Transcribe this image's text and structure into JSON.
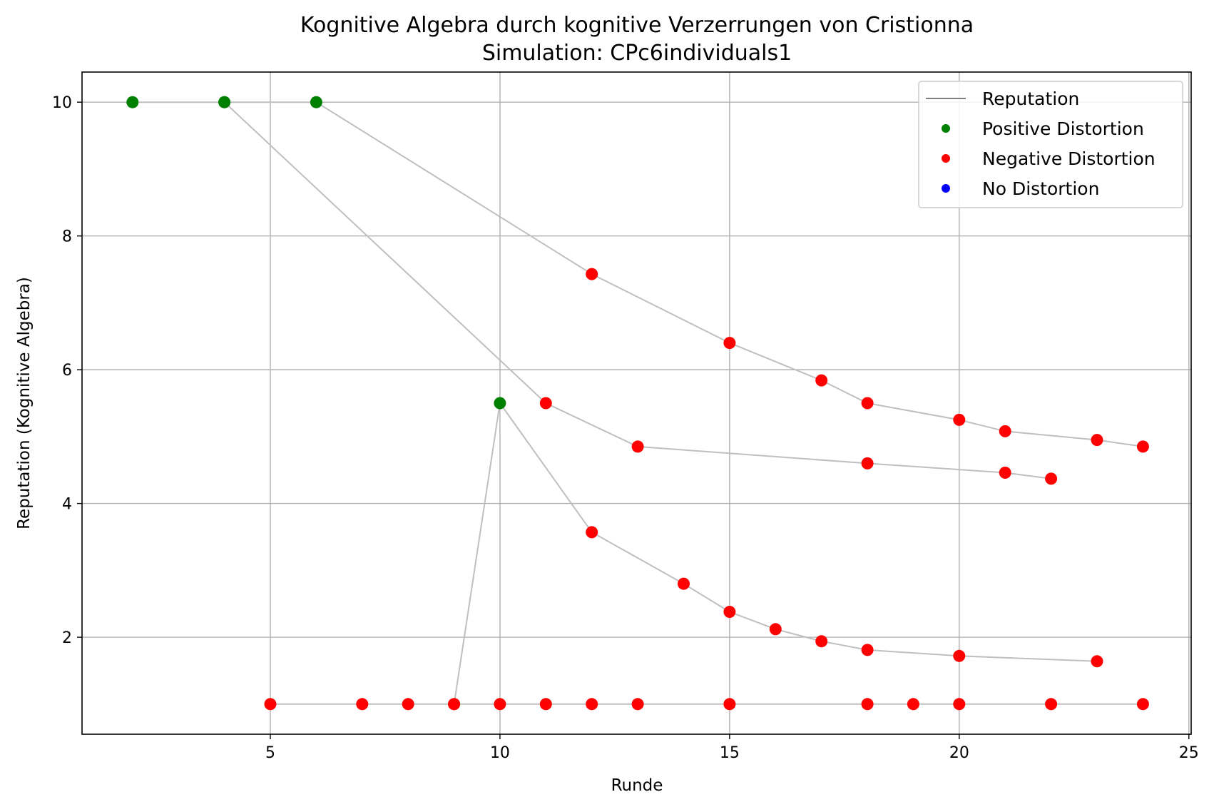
{
  "chart_data": {
    "type": "scatter",
    "title": "Kognitive Algebra durch kognitive Verzerrungen von Cristionna",
    "subtitle": "Simulation: CPc6individuals1",
    "xlabel": "Runde",
    "ylabel": "Reputation (Kognitive Algebra)",
    "xlim": [
      0.9,
      25.05
    ],
    "ylim": [
      0.55,
      10.45
    ],
    "xticks": [
      5,
      10,
      15,
      20,
      25
    ],
    "yticks": [
      2,
      4,
      6,
      8,
      10
    ],
    "grid": true,
    "legend_position": "top-right",
    "legend": [
      {
        "label": "Reputation",
        "kind": "line",
        "color": "#808080"
      },
      {
        "label": "Positive Distortion",
        "kind": "marker",
        "color": "#008000"
      },
      {
        "label": "Negative Distortion",
        "kind": "marker",
        "color": "#ff0000"
      },
      {
        "label": "No Distortion",
        "kind": "marker",
        "color": "#0000ff"
      }
    ],
    "line_color": "#bfbfbf",
    "series": [
      {
        "points": [
          {
            "x": 2,
            "y": 10,
            "d": "positive"
          },
          {
            "x": 4,
            "y": 10,
            "d": "positive"
          },
          {
            "x": 6,
            "y": 10,
            "d": "positive"
          },
          {
            "x": 12,
            "y": 7.43,
            "d": "negative"
          },
          {
            "x": 15,
            "y": 6.4,
            "d": "negative"
          },
          {
            "x": 17,
            "y": 5.84,
            "d": "negative"
          },
          {
            "x": 18,
            "y": 5.5,
            "d": "negative"
          },
          {
            "x": 20,
            "y": 5.25,
            "d": "negative"
          },
          {
            "x": 21,
            "y": 5.08,
            "d": "negative"
          },
          {
            "x": 23,
            "y": 4.95,
            "d": "negative"
          },
          {
            "x": 24,
            "y": 4.85,
            "d": "negative"
          }
        ]
      },
      {
        "points": [
          {
            "x": 4,
            "y": 10,
            "d": "positive"
          },
          {
            "x": 11,
            "y": 5.5,
            "d": "negative"
          },
          {
            "x": 13,
            "y": 4.85,
            "d": "negative"
          },
          {
            "x": 18,
            "y": 4.6,
            "d": "negative"
          },
          {
            "x": 21,
            "y": 4.46,
            "d": "negative"
          },
          {
            "x": 22,
            "y": 4.37,
            "d": "negative"
          }
        ]
      },
      {
        "points": [
          {
            "x": 9,
            "y": 1,
            "d": "negative"
          },
          {
            "x": 10,
            "y": 5.5,
            "d": "positive"
          },
          {
            "x": 12,
            "y": 3.57,
            "d": "negative"
          },
          {
            "x": 14,
            "y": 2.8,
            "d": "negative"
          },
          {
            "x": 15,
            "y": 2.38,
            "d": "negative"
          },
          {
            "x": 16,
            "y": 2.12,
            "d": "negative"
          },
          {
            "x": 17,
            "y": 1.94,
            "d": "negative"
          },
          {
            "x": 18,
            "y": 1.81,
            "d": "negative"
          },
          {
            "x": 20,
            "y": 1.72,
            "d": "negative"
          },
          {
            "x": 23,
            "y": 1.64,
            "d": "negative"
          }
        ]
      },
      {
        "points": [
          {
            "x": 5,
            "y": 1,
            "d": "negative"
          },
          {
            "x": 7,
            "y": 1,
            "d": "negative"
          },
          {
            "x": 8,
            "y": 1,
            "d": "negative"
          },
          {
            "x": 9,
            "y": 1,
            "d": "negative"
          },
          {
            "x": 10,
            "y": 1,
            "d": "negative"
          },
          {
            "x": 11,
            "y": 1,
            "d": "negative"
          },
          {
            "x": 12,
            "y": 1,
            "d": "negative"
          },
          {
            "x": 13,
            "y": 1,
            "d": "negative"
          },
          {
            "x": 15,
            "y": 1,
            "d": "negative"
          },
          {
            "x": 18,
            "y": 1,
            "d": "negative"
          },
          {
            "x": 19,
            "y": 1,
            "d": "negative"
          },
          {
            "x": 20,
            "y": 1,
            "d": "negative"
          },
          {
            "x": 22,
            "y": 1,
            "d": "negative"
          },
          {
            "x": 24,
            "y": 1,
            "d": "negative"
          }
        ]
      }
    ]
  }
}
